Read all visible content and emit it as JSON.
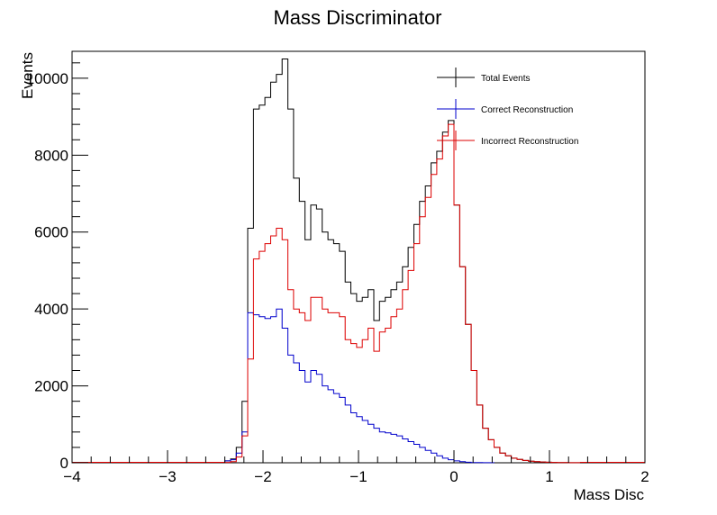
{
  "chart_data": {
    "type": "histogram",
    "title": "Mass Discriminator",
    "xlabel": "Mass Disc",
    "ylabel": "Events",
    "xlim": [
      -4,
      2
    ],
    "ylim": [
      0,
      10700
    ],
    "x_ticks": [
      "−4",
      "−3",
      "−2",
      "−1",
      "0",
      "1",
      "2"
    ],
    "y_ticks": [
      "0",
      "2000",
      "4000",
      "6000",
      "8000",
      "10000"
    ],
    "bin_width": 0.06,
    "legend_position": "top-right",
    "series": [
      {
        "name": "Total Events",
        "color": "#000000",
        "bins": [
          [
            -2.4,
            50
          ],
          [
            -2.34,
            100
          ],
          [
            -2.28,
            400
          ],
          [
            -2.22,
            1600
          ],
          [
            -2.16,
            6100
          ],
          [
            -2.1,
            9200
          ],
          [
            -2.04,
            9300
          ],
          [
            -1.98,
            9500
          ],
          [
            -1.92,
            9900
          ],
          [
            -1.86,
            10100
          ],
          [
            -1.8,
            10500
          ],
          [
            -1.74,
            9200
          ],
          [
            -1.68,
            7400
          ],
          [
            -1.62,
            6800
          ],
          [
            -1.56,
            5800
          ],
          [
            -1.5,
            6700
          ],
          [
            -1.44,
            6600
          ],
          [
            -1.38,
            6000
          ],
          [
            -1.32,
            5800
          ],
          [
            -1.26,
            5700
          ],
          [
            -1.2,
            5500
          ],
          [
            -1.14,
            4700
          ],
          [
            -1.08,
            4400
          ],
          [
            -1.02,
            4200
          ],
          [
            -0.96,
            4300
          ],
          [
            -0.9,
            4500
          ],
          [
            -0.84,
            3700
          ],
          [
            -0.78,
            4200
          ],
          [
            -0.72,
            4300
          ],
          [
            -0.66,
            4500
          ],
          [
            -0.6,
            4700
          ],
          [
            -0.54,
            5100
          ],
          [
            -0.48,
            5600
          ],
          [
            -0.42,
            6200
          ],
          [
            -0.36,
            6800
          ],
          [
            -0.3,
            7200
          ],
          [
            -0.24,
            7800
          ],
          [
            -0.18,
            8100
          ],
          [
            -0.12,
            8600
          ],
          [
            -0.06,
            8900
          ],
          [
            0.0,
            6700
          ],
          [
            0.06,
            5100
          ],
          [
            0.12,
            3600
          ],
          [
            0.18,
            2400
          ],
          [
            0.24,
            1500
          ],
          [
            0.3,
            900
          ],
          [
            0.36,
            600
          ],
          [
            0.42,
            400
          ],
          [
            0.48,
            250
          ],
          [
            0.54,
            180
          ],
          [
            0.6,
            120
          ],
          [
            0.66,
            90
          ],
          [
            0.72,
            60
          ],
          [
            0.78,
            40
          ],
          [
            0.84,
            30
          ],
          [
            0.9,
            20
          ],
          [
            0.96,
            15
          ],
          [
            1.02,
            10
          ],
          [
            1.08,
            8
          ],
          [
            1.14,
            5
          ],
          [
            1.2,
            3
          ],
          [
            1.26,
            2
          ]
        ]
      },
      {
        "name": "Correct Reconstruction",
        "color": "#0000cc",
        "bins": [
          [
            -2.4,
            50
          ],
          [
            -2.34,
            80
          ],
          [
            -2.28,
            250
          ],
          [
            -2.22,
            800
          ],
          [
            -2.16,
            3900
          ],
          [
            -2.1,
            3850
          ],
          [
            -2.04,
            3800
          ],
          [
            -1.98,
            3750
          ],
          [
            -1.92,
            3800
          ],
          [
            -1.86,
            4000
          ],
          [
            -1.8,
            3500
          ],
          [
            -1.74,
            2800
          ],
          [
            -1.68,
            2600
          ],
          [
            -1.62,
            2400
          ],
          [
            -1.56,
            2100
          ],
          [
            -1.5,
            2400
          ],
          [
            -1.44,
            2300
          ],
          [
            -1.38,
            2000
          ],
          [
            -1.32,
            1900
          ],
          [
            -1.26,
            1800
          ],
          [
            -1.2,
            1700
          ],
          [
            -1.14,
            1500
          ],
          [
            -1.08,
            1300
          ],
          [
            -1.02,
            1200
          ],
          [
            -0.96,
            1100
          ],
          [
            -0.9,
            1000
          ],
          [
            -0.84,
            900
          ],
          [
            -0.78,
            800
          ],
          [
            -0.72,
            780
          ],
          [
            -0.66,
            740
          ],
          [
            -0.6,
            700
          ],
          [
            -0.54,
            620
          ],
          [
            -0.48,
            550
          ],
          [
            -0.42,
            480
          ],
          [
            -0.36,
            400
          ],
          [
            -0.3,
            320
          ],
          [
            -0.24,
            250
          ],
          [
            -0.18,
            180
          ],
          [
            -0.12,
            120
          ],
          [
            -0.06,
            80
          ],
          [
            0.0,
            50
          ],
          [
            0.06,
            30
          ],
          [
            0.12,
            15
          ],
          [
            0.18,
            8
          ],
          [
            0.24,
            5
          ],
          [
            0.3,
            3
          ],
          [
            0.36,
            2
          ]
        ]
      },
      {
        "name": "Incorrect Reconstruction",
        "color": "#dd0000",
        "bins": [
          [
            -2.4,
            10
          ],
          [
            -2.34,
            30
          ],
          [
            -2.28,
            150
          ],
          [
            -2.22,
            700
          ],
          [
            -2.16,
            2700
          ],
          [
            -2.1,
            5300
          ],
          [
            -2.04,
            5500
          ],
          [
            -1.98,
            5700
          ],
          [
            -1.92,
            5900
          ],
          [
            -1.86,
            6100
          ],
          [
            -1.8,
            5800
          ],
          [
            -1.74,
            4500
          ],
          [
            -1.68,
            4000
          ],
          [
            -1.62,
            3900
          ],
          [
            -1.56,
            3700
          ],
          [
            -1.5,
            4300
          ],
          [
            -1.44,
            4300
          ],
          [
            -1.38,
            4000
          ],
          [
            -1.32,
            3900
          ],
          [
            -1.26,
            3900
          ],
          [
            -1.2,
            3800
          ],
          [
            -1.14,
            3200
          ],
          [
            -1.08,
            3100
          ],
          [
            -1.02,
            3000
          ],
          [
            -0.96,
            3200
          ],
          [
            -0.9,
            3500
          ],
          [
            -0.84,
            2900
          ],
          [
            -0.78,
            3400
          ],
          [
            -0.72,
            3500
          ],
          [
            -0.66,
            3800
          ],
          [
            -0.6,
            4000
          ],
          [
            -0.54,
            4500
          ],
          [
            -0.48,
            5000
          ],
          [
            -0.42,
            5700
          ],
          [
            -0.36,
            6400
          ],
          [
            -0.3,
            6900
          ],
          [
            -0.24,
            7500
          ],
          [
            -0.18,
            7900
          ],
          [
            -0.12,
            8500
          ],
          [
            -0.06,
            8800
          ],
          [
            0.0,
            6700
          ],
          [
            0.06,
            5100
          ],
          [
            0.12,
            3600
          ],
          [
            0.18,
            2400
          ],
          [
            0.24,
            1500
          ],
          [
            0.3,
            900
          ],
          [
            0.36,
            600
          ],
          [
            0.42,
            400
          ],
          [
            0.48,
            250
          ],
          [
            0.54,
            180
          ],
          [
            0.6,
            120
          ],
          [
            0.66,
            90
          ],
          [
            0.72,
            60
          ],
          [
            0.78,
            40
          ],
          [
            0.84,
            30
          ],
          [
            0.9,
            20
          ],
          [
            0.96,
            15
          ],
          [
            1.02,
            10
          ],
          [
            1.08,
            8
          ],
          [
            1.14,
            5
          ],
          [
            1.2,
            3
          ],
          [
            1.26,
            2
          ]
        ]
      }
    ]
  }
}
